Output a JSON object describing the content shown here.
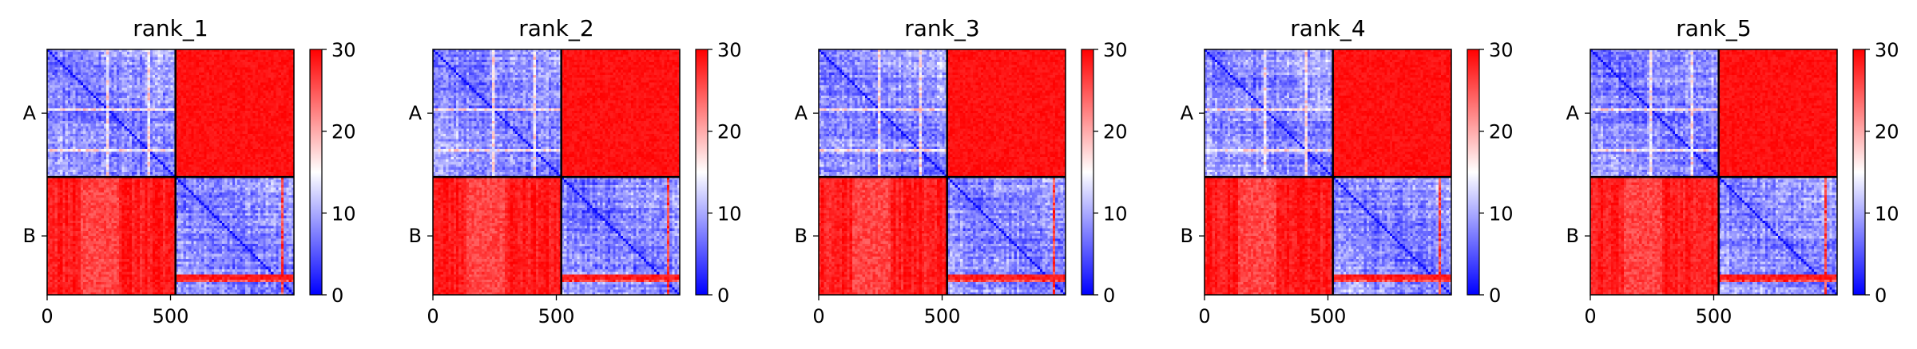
{
  "chart_data": [
    {
      "type": "heatmap",
      "title": "rank_1",
      "x_ticks": [
        0,
        500
      ],
      "y_tick_labels": [
        "A",
        "B"
      ],
      "chain_boundary": 520,
      "extent": [
        0,
        1000
      ],
      "colorbar": {
        "ticks": [
          0,
          10,
          20,
          30
        ],
        "range": [
          0,
          30
        ],
        "colormap": "bwr"
      },
      "colors": {
        "low": "#0000ff",
        "mid": "#ffffff",
        "high": "#ff0000"
      },
      "seed": 11
    },
    {
      "type": "heatmap",
      "title": "rank_2",
      "x_ticks": [
        0,
        500
      ],
      "y_tick_labels": [
        "A",
        "B"
      ],
      "chain_boundary": 520,
      "extent": [
        0,
        1000
      ],
      "colorbar": {
        "ticks": [
          0,
          10,
          20,
          30
        ],
        "range": [
          0,
          30
        ],
        "colormap": "bwr"
      },
      "colors": {
        "low": "#0000ff",
        "mid": "#ffffff",
        "high": "#ff0000"
      },
      "seed": 23
    },
    {
      "type": "heatmap",
      "title": "rank_3",
      "x_ticks": [
        0,
        500
      ],
      "y_tick_labels": [
        "A",
        "B"
      ],
      "chain_boundary": 520,
      "extent": [
        0,
        1000
      ],
      "colorbar": {
        "ticks": [
          0,
          10,
          20,
          30
        ],
        "range": [
          0,
          30
        ],
        "colormap": "bwr"
      },
      "colors": {
        "low": "#0000ff",
        "mid": "#ffffff",
        "high": "#ff0000"
      },
      "seed": 37
    },
    {
      "type": "heatmap",
      "title": "rank_4",
      "x_ticks": [
        0,
        500
      ],
      "y_tick_labels": [
        "A",
        "B"
      ],
      "chain_boundary": 520,
      "extent": [
        0,
        1000
      ],
      "colorbar": {
        "ticks": [
          0,
          10,
          20,
          30
        ],
        "range": [
          0,
          30
        ],
        "colormap": "bwr"
      },
      "colors": {
        "low": "#0000ff",
        "mid": "#ffffff",
        "high": "#ff0000"
      },
      "seed": 41
    },
    {
      "type": "heatmap",
      "title": "rank_5",
      "x_ticks": [
        0,
        500
      ],
      "y_tick_labels": [
        "A",
        "B"
      ],
      "chain_boundary": 520,
      "extent": [
        0,
        1000
      ],
      "colorbar": {
        "ticks": [
          0,
          10,
          20,
          30
        ],
        "range": [
          0,
          30
        ],
        "colormap": "bwr"
      },
      "colors": {
        "low": "#0000ff",
        "mid": "#ffffff",
        "high": "#ff0000"
      },
      "seed": 53
    }
  ]
}
